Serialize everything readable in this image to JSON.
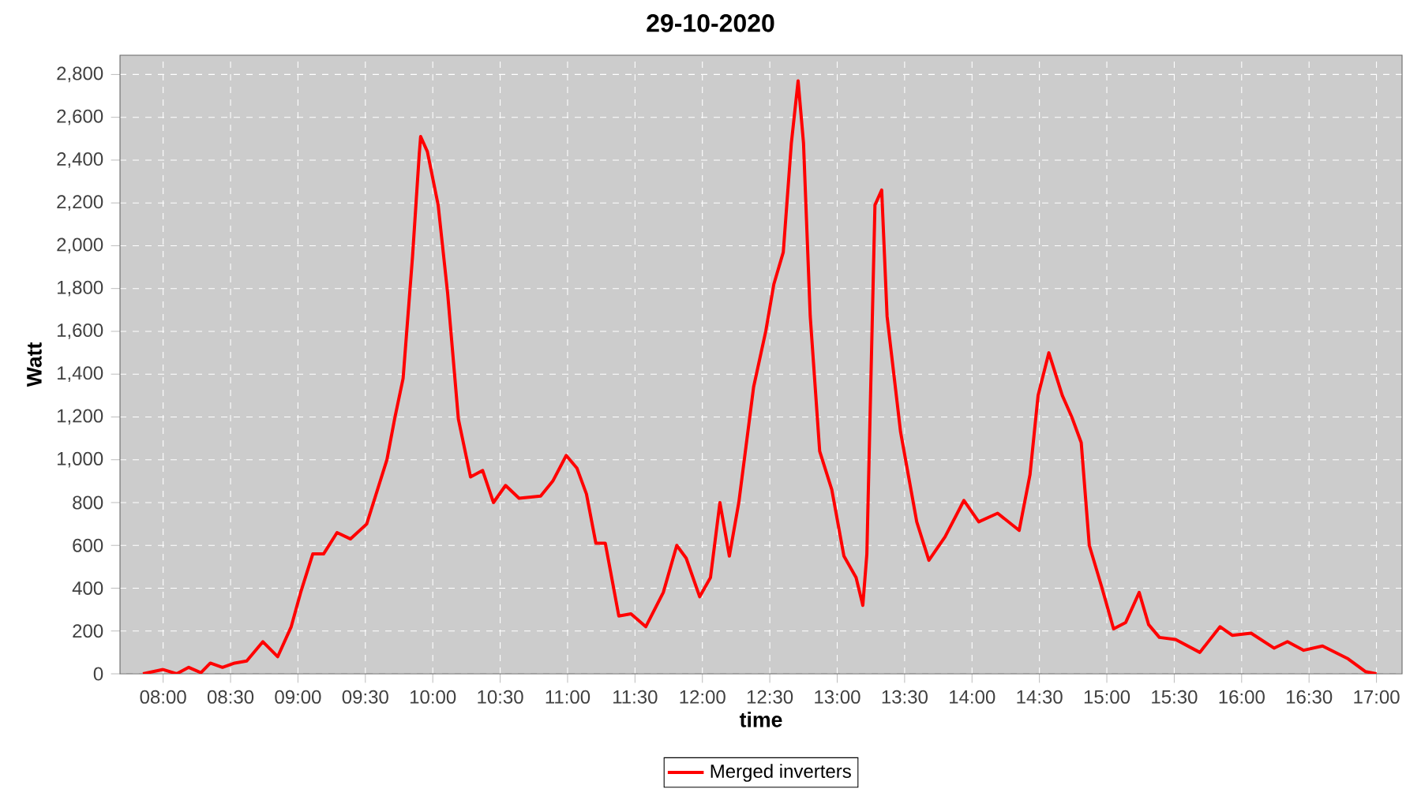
{
  "chart_data": {
    "type": "line",
    "title": "29-10-2020",
    "xlabel": "time",
    "ylabel": "Watt",
    "xlim": [
      7.68,
      17.19
    ],
    "ylim": [
      0,
      2890
    ],
    "xticks": [
      {
        "value": 8,
        "label": "08:00"
      },
      {
        "value": 8.5,
        "label": "08:30"
      },
      {
        "value": 9,
        "label": "09:00"
      },
      {
        "value": 9.5,
        "label": "09:30"
      },
      {
        "value": 10,
        "label": "10:00"
      },
      {
        "value": 10.5,
        "label": "10:30"
      },
      {
        "value": 11,
        "label": "11:00"
      },
      {
        "value": 11.5,
        "label": "11:30"
      },
      {
        "value": 12,
        "label": "12:00"
      },
      {
        "value": 12.5,
        "label": "12:30"
      },
      {
        "value": 13,
        "label": "13:00"
      },
      {
        "value": 13.5,
        "label": "13:30"
      },
      {
        "value": 14,
        "label": "14:00"
      },
      {
        "value": 14.5,
        "label": "14:30"
      },
      {
        "value": 15,
        "label": "15:00"
      },
      {
        "value": 15.5,
        "label": "15:30"
      },
      {
        "value": 16,
        "label": "16:00"
      },
      {
        "value": 16.5,
        "label": "16:30"
      },
      {
        "value": 17,
        "label": "17:00"
      }
    ],
    "yticks": [
      0,
      200,
      400,
      600,
      800,
      {
        "value": 1000,
        "label": "1,000"
      },
      {
        "value": 1200,
        "label": "1,200"
      },
      {
        "value": 1400,
        "label": "1,400"
      },
      {
        "value": 1600,
        "label": "1,600"
      },
      {
        "value": 1800,
        "label": "1,800"
      },
      {
        "value": 2000,
        "label": "2,000"
      },
      {
        "value": 2200,
        "label": "2,200"
      },
      {
        "value": 2400,
        "label": "2,400"
      },
      {
        "value": 2600,
        "label": "2,600"
      },
      {
        "value": 2800,
        "label": "2,800"
      }
    ],
    "grid": true,
    "legend": "bottom",
    "line_style": "solid",
    "series": [
      {
        "name": "Merged inverters",
        "color": "#ff0000",
        "x": [
          7.85,
          8.0,
          8.1,
          8.19,
          8.28,
          8.35,
          8.44,
          8.53,
          8.62,
          8.74,
          8.85,
          8.95,
          9.02,
          9.11,
          9.19,
          9.29,
          9.39,
          9.51,
          9.66,
          9.72,
          9.78,
          9.85,
          9.9,
          9.91,
          9.96,
          10.04,
          10.11,
          10.19,
          10.28,
          10.37,
          10.45,
          10.54,
          10.64,
          10.8,
          10.89,
          10.99,
          11.07,
          11.14,
          11.21,
          11.28,
          11.38,
          11.47,
          11.58,
          11.71,
          11.81,
          11.88,
          11.98,
          12.06,
          12.13,
          12.2,
          12.27,
          12.38,
          12.47,
          12.53,
          12.6,
          12.66,
          12.71,
          12.75,
          12.8,
          12.87,
          12.96,
          13.05,
          13.14,
          13.19,
          13.22,
          13.28,
          13.33,
          13.37,
          13.47,
          13.59,
          13.68,
          13.8,
          13.94,
          14.05,
          14.19,
          14.35,
          14.43,
          14.49,
          14.57,
          14.67,
          14.74,
          14.81,
          14.87,
          14.96,
          15.05,
          15.14,
          15.24,
          15.31,
          15.39,
          15.51,
          15.69,
          15.84,
          15.93,
          16.07,
          16.24,
          16.34,
          16.46,
          16.6,
          16.79,
          16.92,
          17.0
        ],
        "values": [
          0,
          20,
          0,
          30,
          5,
          50,
          30,
          50,
          60,
          150,
          80,
          220,
          380,
          560,
          560,
          660,
          630,
          700,
          1000,
          1200,
          1380,
          1950,
          2430,
          2510,
          2440,
          2190,
          1780,
          1190,
          920,
          950,
          800,
          880,
          820,
          830,
          900,
          1020,
          960,
          840,
          610,
          610,
          270,
          280,
          220,
          380,
          600,
          540,
          360,
          450,
          800,
          550,
          800,
          1340,
          1600,
          1820,
          1970,
          2480,
          2770,
          2480,
          1670,
          1040,
          860,
          550,
          450,
          320,
          560,
          2190,
          2260,
          1670,
          1130,
          710,
          530,
          640,
          810,
          710,
          750,
          670,
          930,
          1300,
          1500,
          1300,
          1200,
          1080,
          600,
          410,
          210,
          240,
          380,
          230,
          170,
          160,
          100,
          220,
          180,
          190,
          120,
          150,
          110,
          130,
          70,
          10,
          0
        ]
      }
    ]
  }
}
